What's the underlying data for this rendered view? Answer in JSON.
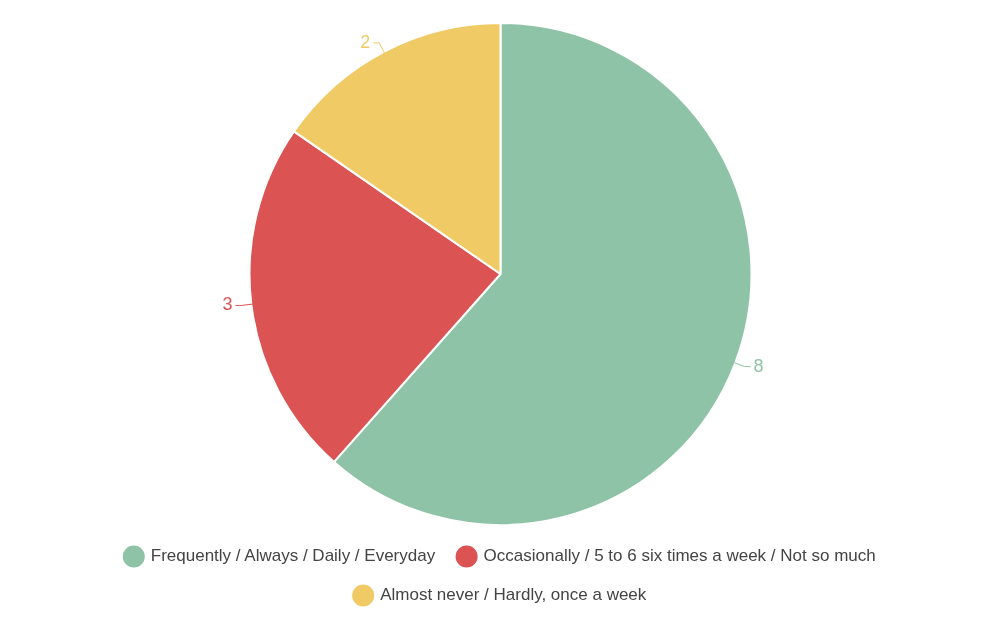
{
  "chart_data": {
    "type": "pie",
    "categories": [
      "Frequently / Always / Daily / Everyday",
      "Occasionally / 5 to 6 six times a week / Not so much",
      "Almost never / Hardly, once a week"
    ],
    "values": [
      8,
      3,
      2
    ],
    "colors": [
      "#8fc3a8",
      "#dc5353",
      "#f0ca65"
    ],
    "data_labels": true,
    "legend": "bottom"
  }
}
